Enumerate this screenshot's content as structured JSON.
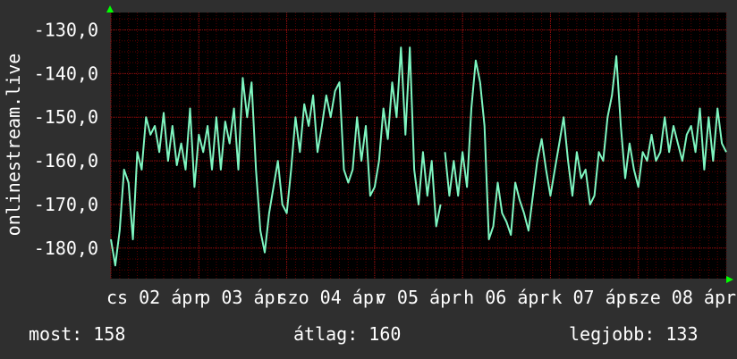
{
  "chart_data": {
    "type": "line",
    "ylabel": "onlinestream.live",
    "yticks": [
      "-130,0",
      "-140,0",
      "-150,0",
      "-160,0",
      "-170,0",
      "-180,0"
    ],
    "ytick_values": [
      -130,
      -140,
      -150,
      -160,
      -170,
      -180
    ],
    "ylim": [
      -187,
      -126
    ],
    "xticks": [
      "cs 02 ápr",
      "p 03 ápr",
      "szo 04 ápr",
      "v 05 ápr",
      "h 06 ápr",
      "k 07 ápr",
      "sze 08 ápr"
    ],
    "xlim": [
      0,
      7
    ],
    "grid": true,
    "colors": {
      "line": "#7ff5c0",
      "plot_bg": "#000000",
      "page_bg": "#2f2f2f",
      "grid": "#5a0000",
      "arrow": "#00ff00"
    },
    "series": [
      {
        "x": [
          0.0,
          0.05,
          0.1,
          0.15,
          0.2,
          0.25,
          0.3,
          0.35,
          0.4,
          0.45,
          0.5,
          0.55,
          0.6,
          0.65,
          0.7,
          0.75,
          0.8,
          0.85,
          0.9,
          0.95,
          1.0,
          1.05,
          1.1,
          1.15,
          1.2,
          1.25,
          1.3,
          1.35,
          1.4,
          1.45,
          1.5,
          1.55,
          1.6,
          1.65,
          1.7,
          1.75,
          1.8,
          1.85,
          1.9,
          1.95,
          2.0,
          2.05,
          2.1,
          2.15,
          2.2,
          2.25,
          2.3,
          2.35,
          2.4,
          2.45,
          2.5,
          2.55,
          2.6,
          2.65,
          2.7,
          2.75,
          2.8,
          2.85,
          2.9,
          2.95,
          3.0,
          3.05,
          3.1,
          3.15,
          3.2,
          3.25,
          3.3,
          3.35,
          3.4,
          3.45,
          3.5,
          3.55,
          3.6,
          3.65,
          3.7,
          3.75,
          3.8,
          3.85,
          3.9,
          3.95,
          4.0,
          4.05,
          4.1,
          4.15,
          4.2,
          4.25,
          4.3,
          4.35,
          4.4,
          4.45,
          4.5,
          4.55,
          4.6,
          4.65,
          4.7,
          4.75,
          4.8,
          4.85,
          4.9,
          4.95,
          5.0,
          5.05,
          5.1,
          5.15,
          5.2,
          5.25,
          5.3,
          5.35,
          5.4,
          5.45,
          5.5,
          5.55,
          5.6,
          5.65,
          5.7,
          5.75,
          5.8,
          5.85,
          5.9,
          5.95,
          6.0,
          6.05,
          6.1,
          6.15,
          6.2,
          6.25,
          6.3,
          6.35,
          6.4,
          6.45,
          6.5,
          6.55,
          6.6,
          6.65,
          6.7,
          6.75,
          6.8,
          6.85,
          6.9,
          6.95,
          7.0
        ],
        "y": [
          -178,
          -184,
          -176,
          -162,
          -165,
          -178,
          -158,
          -162,
          -150,
          -154,
          -152,
          -158,
          -149,
          -160,
          -152,
          -161,
          -156,
          -162,
          -148,
          -166,
          -154,
          -158,
          -152,
          -162,
          -150,
          -162,
          -151,
          -156,
          -148,
          -162,
          -141,
          -150,
          -142,
          -162,
          -176,
          -181,
          -172,
          -166,
          -160,
          -170,
          -172,
          -162,
          -150,
          -158,
          -147,
          -152,
          -145,
          -158,
          -152,
          -145,
          -150,
          -144,
          -142,
          -162,
          -165,
          -162,
          -150,
          -160,
          -152,
          -168,
          -166,
          -160,
          -148,
          -155,
          -142,
          -150,
          -134,
          -154,
          -134,
          -162,
          -170,
          -158,
          -168,
          -160,
          -175,
          -170,
          -158,
          -168,
          -160,
          -168,
          -158,
          -166,
          -148,
          -137,
          -142,
          -152,
          -178,
          -175,
          -165,
          -172,
          -174,
          -177,
          -165,
          -169,
          -172,
          -176,
          -168,
          -160,
          -155,
          -162,
          -168,
          -162,
          -156,
          -150,
          -160,
          -168,
          -158,
          -164,
          -162,
          -170,
          -168,
          -158,
          -160,
          -150,
          -145,
          -136,
          -152,
          -164,
          -156,
          -162,
          -166,
          -158,
          -160,
          -154,
          -160,
          -158,
          -150,
          -158,
          -152,
          -156,
          -160,
          -154,
          -152,
          -158,
          -148,
          -162,
          -150,
          -160,
          -148,
          -156,
          -158
        ],
        "segments": [
          [
            0,
            75
          ],
          [
            76,
            140
          ]
        ]
      }
    ]
  },
  "footer": {
    "now": "most: 158",
    "avg": "átlag: 160",
    "best": "legjobb: 133"
  }
}
